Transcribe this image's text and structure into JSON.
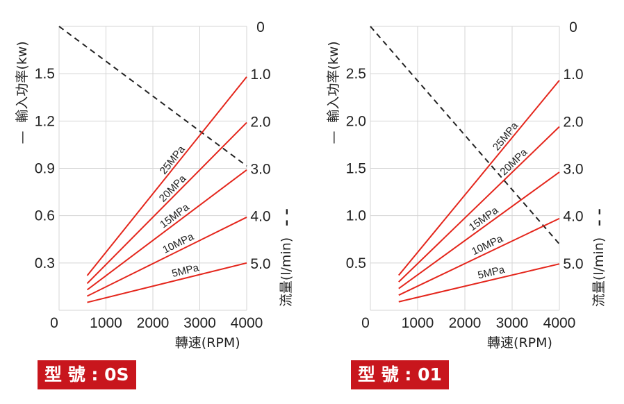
{
  "colors": {
    "power": "#e4261c",
    "flow": "#222222",
    "grid": "#d4d4d4",
    "badge": "#c8161d"
  },
  "chart_data": [
    {
      "type": "line",
      "model_label": "型 號 : 0S",
      "xlabel": "轉速(RPM)",
      "ylabel_left": "輸入功率(kw)",
      "ylabel_right": "流量(l/min)",
      "left_legend_mark": "—",
      "right_legend_mark": "– –",
      "x_ticks": [
        "0",
        "1000",
        "2000",
        "3000",
        "4000"
      ],
      "left_ticks": [
        "0.3",
        "0.6",
        "0.9",
        "1.2",
        "1.5"
      ],
      "right_ticks": [
        "0",
        "1.0",
        "2.0",
        "3.0",
        "4.0",
        "5.0"
      ],
      "xlim": [
        0,
        4000
      ],
      "ylim_left": [
        0,
        1.8
      ],
      "ylim_right_inverted": [
        0,
        6.0
      ],
      "grid": true,
      "power_series": [
        {
          "name": "5MPa",
          "x": [
            600,
            4000
          ],
          "y": [
            0.05,
            0.3
          ]
        },
        {
          "name": "10MPa",
          "x": [
            600,
            4000
          ],
          "y": [
            0.09,
            0.59
          ]
        },
        {
          "name": "15MPa",
          "x": [
            600,
            4000
          ],
          "y": [
            0.13,
            0.89
          ]
        },
        {
          "name": "20MPa",
          "x": [
            600,
            4000
          ],
          "y": [
            0.17,
            1.19
          ]
        },
        {
          "name": "25MPa",
          "x": [
            600,
            4000
          ],
          "y": [
            0.22,
            1.48
          ]
        }
      ],
      "flow_series": {
        "x": [
          0,
          4000
        ],
        "y": [
          0,
          2.95
        ]
      }
    },
    {
      "type": "line",
      "model_label": "型 號 : 01",
      "xlabel": "轉速(RPM)",
      "ylabel_left": "輸入功率(kw)",
      "ylabel_right": "流量(l/min)",
      "left_legend_mark": "—",
      "right_legend_mark": "– –",
      "x_ticks": [
        "0",
        "1000",
        "2000",
        "3000",
        "4000"
      ],
      "left_ticks": [
        "0.5",
        "1.0",
        "1.5",
        "2.0",
        "2.5"
      ],
      "right_ticks": [
        "0",
        "1.0",
        "2.0",
        "3.0",
        "4.0",
        "5.0"
      ],
      "xlim": [
        0,
        4000
      ],
      "ylim_left": [
        0,
        3.0
      ],
      "ylim_right_inverted": [
        0,
        6.0
      ],
      "grid": true,
      "power_series": [
        {
          "name": "5MPa",
          "x": [
            600,
            4000
          ],
          "y": [
            0.09,
            0.49
          ]
        },
        {
          "name": "10MPa",
          "x": [
            600,
            4000
          ],
          "y": [
            0.16,
            0.97
          ]
        },
        {
          "name": "15MPa",
          "x": [
            600,
            4000
          ],
          "y": [
            0.23,
            1.46
          ]
        },
        {
          "name": "20MPa",
          "x": [
            600,
            4000
          ],
          "y": [
            0.3,
            1.94
          ]
        },
        {
          "name": "25MPa",
          "x": [
            600,
            4000
          ],
          "y": [
            0.37,
            2.43
          ]
        }
      ],
      "flow_series": {
        "x": [
          0,
          4000
        ],
        "y": [
          0,
          4.6
        ]
      }
    }
  ]
}
